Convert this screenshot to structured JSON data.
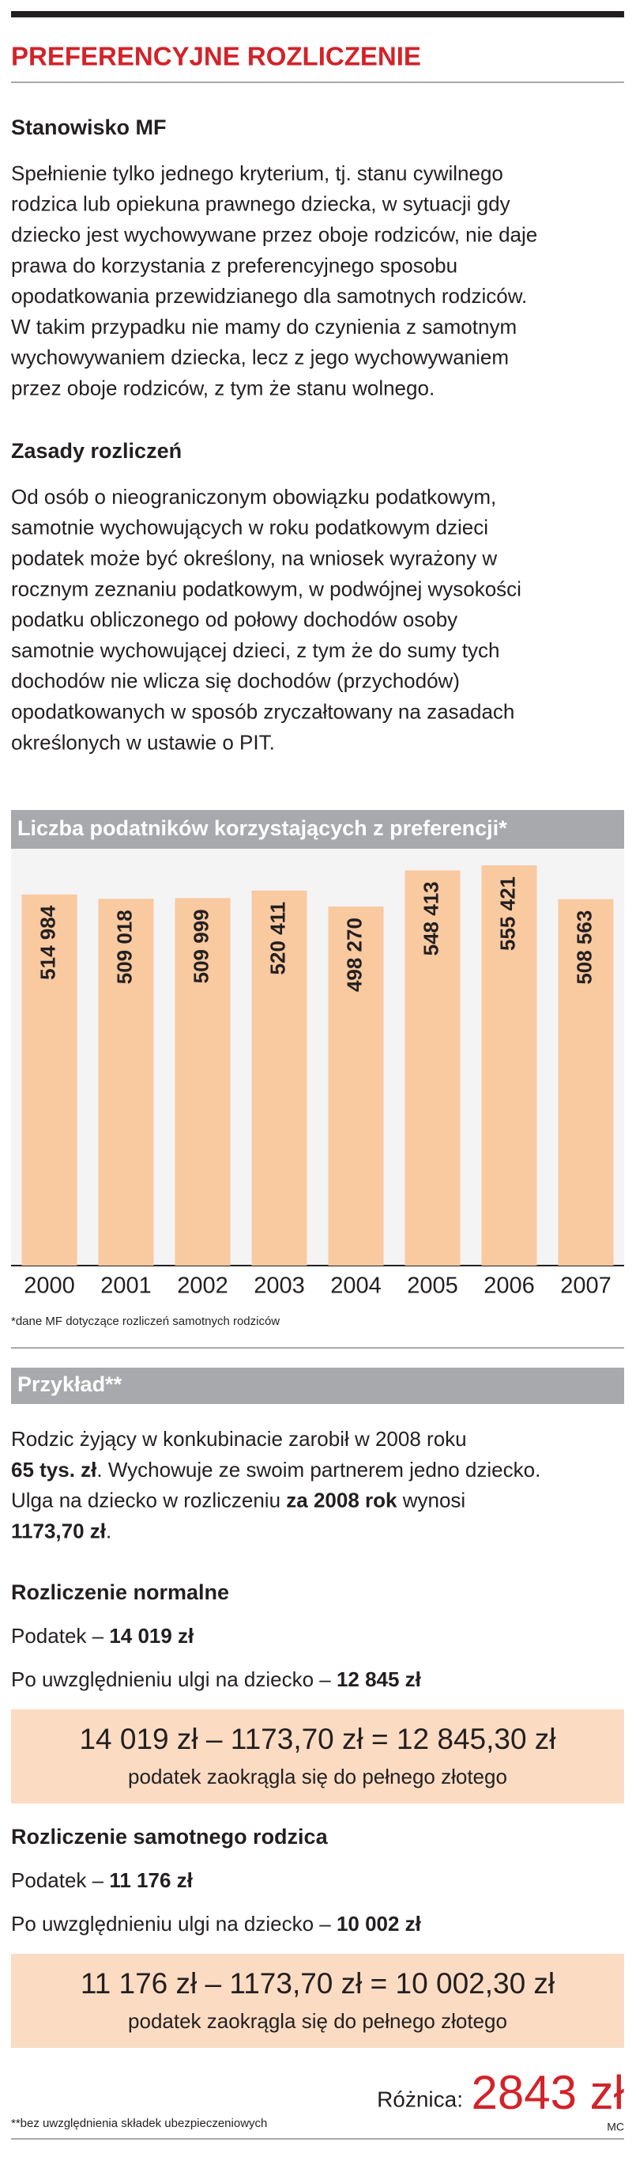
{
  "header": {
    "title": "PREFERENCYJNE ROZLICZENIE"
  },
  "sections": [
    {
      "heading": "Stanowisko MF",
      "lines": [
        "Spełnienie tylko jednego kryterium, tj. stanu cywilnego",
        "rodzica lub opiekuna prawnego dziecka, w sytuacji gdy",
        "dziecko jest wychowywane przez oboje rodziców, nie daje",
        "prawa do korzystania z preferencyjnego sposobu",
        "opodatkowania przewidzianego dla samotnych rodziców.",
        "W takim przypadku nie mamy do czynienia z samotnym",
        "wychowywaniem dziecka, lecz z jego wychowywaniem",
        "przez oboje rodziców, z tym że stanu wolnego."
      ]
    },
    {
      "heading": "Zasady rozliczeń",
      "lines": [
        "Od osób o nieograniczonym obowiązku podatkowym,",
        "samotnie wychowujących w roku podatkowym dzieci",
        "podatek może być określony, na wniosek wyrażony w",
        "rocznym zeznaniu podatkowym, w podwójnej wysokości",
        "podatku obliczonego od połowy dochodów osoby",
        "samotnie wychowującej dzieci, z tym że do sumy tych",
        "dochodów nie wlicza się dochodów (przychodów)",
        "opodatkowanych w sposób zryczałtowany na zasadach",
        "określonych w ustawie o PIT."
      ]
    }
  ],
  "chart_data": {
    "type": "bar",
    "title": "Liczba podatników korzystających z preferencji*",
    "categories": [
      "2000",
      "2001",
      "2002",
      "2003",
      "2004",
      "2005",
      "2006",
      "2007"
    ],
    "values": [
      514984,
      509018,
      509999,
      520411,
      498270,
      548413,
      555421,
      508563
    ],
    "value_labels": [
      "514 984",
      "509 018",
      "509 999",
      "520 411",
      "498 270",
      "548 413",
      "555 421",
      "508 563"
    ],
    "color": "#f9c9a0",
    "footnote": "*dane MF dotyczące rozliczeń samotnych rodziców"
  },
  "example": {
    "title": "Przykład**",
    "lines": [
      [
        {
          "text": "Rodzic żyjący w konkubinacie zarobił w 2008 roku"
        }
      ],
      [
        {
          "text": "65 tys. zł",
          "bold": true
        },
        {
          "text": ". Wychowuje ze swoim partnerem jedno dziecko."
        }
      ],
      [
        {
          "text": "Ulga na dziecko w rozliczeniu "
        },
        {
          "text": "za 2008 rok",
          "bold": true
        },
        {
          "text": " wynosi"
        }
      ],
      [
        {
          "text": "1173,70 zł",
          "bold": true
        },
        {
          "text": "."
        }
      ]
    ],
    "cases": [
      {
        "heading": "Rozliczenie normalne",
        "lines": [
          [
            {
              "text": "Podatek – "
            },
            {
              "text": "14 019 zł",
              "bold": true
            }
          ],
          [
            {
              "text": "Po uwzględnieniu ulgi na dziecko – "
            },
            {
              "text": "12 845 zł",
              "bold": true
            }
          ]
        ],
        "equation": "14 019 zł – 1173,70 zł = 12 845,30 zł",
        "note": "podatek zaokrągla się do pełnego złotego"
      },
      {
        "heading": "Rozliczenie samotnego rodzica",
        "lines": [
          [
            {
              "text": "Podatek – "
            },
            {
              "text": "11 176 zł",
              "bold": true
            }
          ],
          [
            {
              "text": "Po uwzględnieniu ulgi na dziecko – "
            },
            {
              "text": "10 002 zł",
              "bold": true
            }
          ]
        ],
        "equation": "11 176 zł – 1173,70 zł = 10 002,30 zł",
        "note": "podatek zaokrągla się do pełnego złotego"
      }
    ]
  },
  "summary": {
    "label": "Różnica:",
    "value": "2843 zł",
    "footnote": "**bez uwzględnienia składek ubezpieczeniowych",
    "author": "MC"
  }
}
